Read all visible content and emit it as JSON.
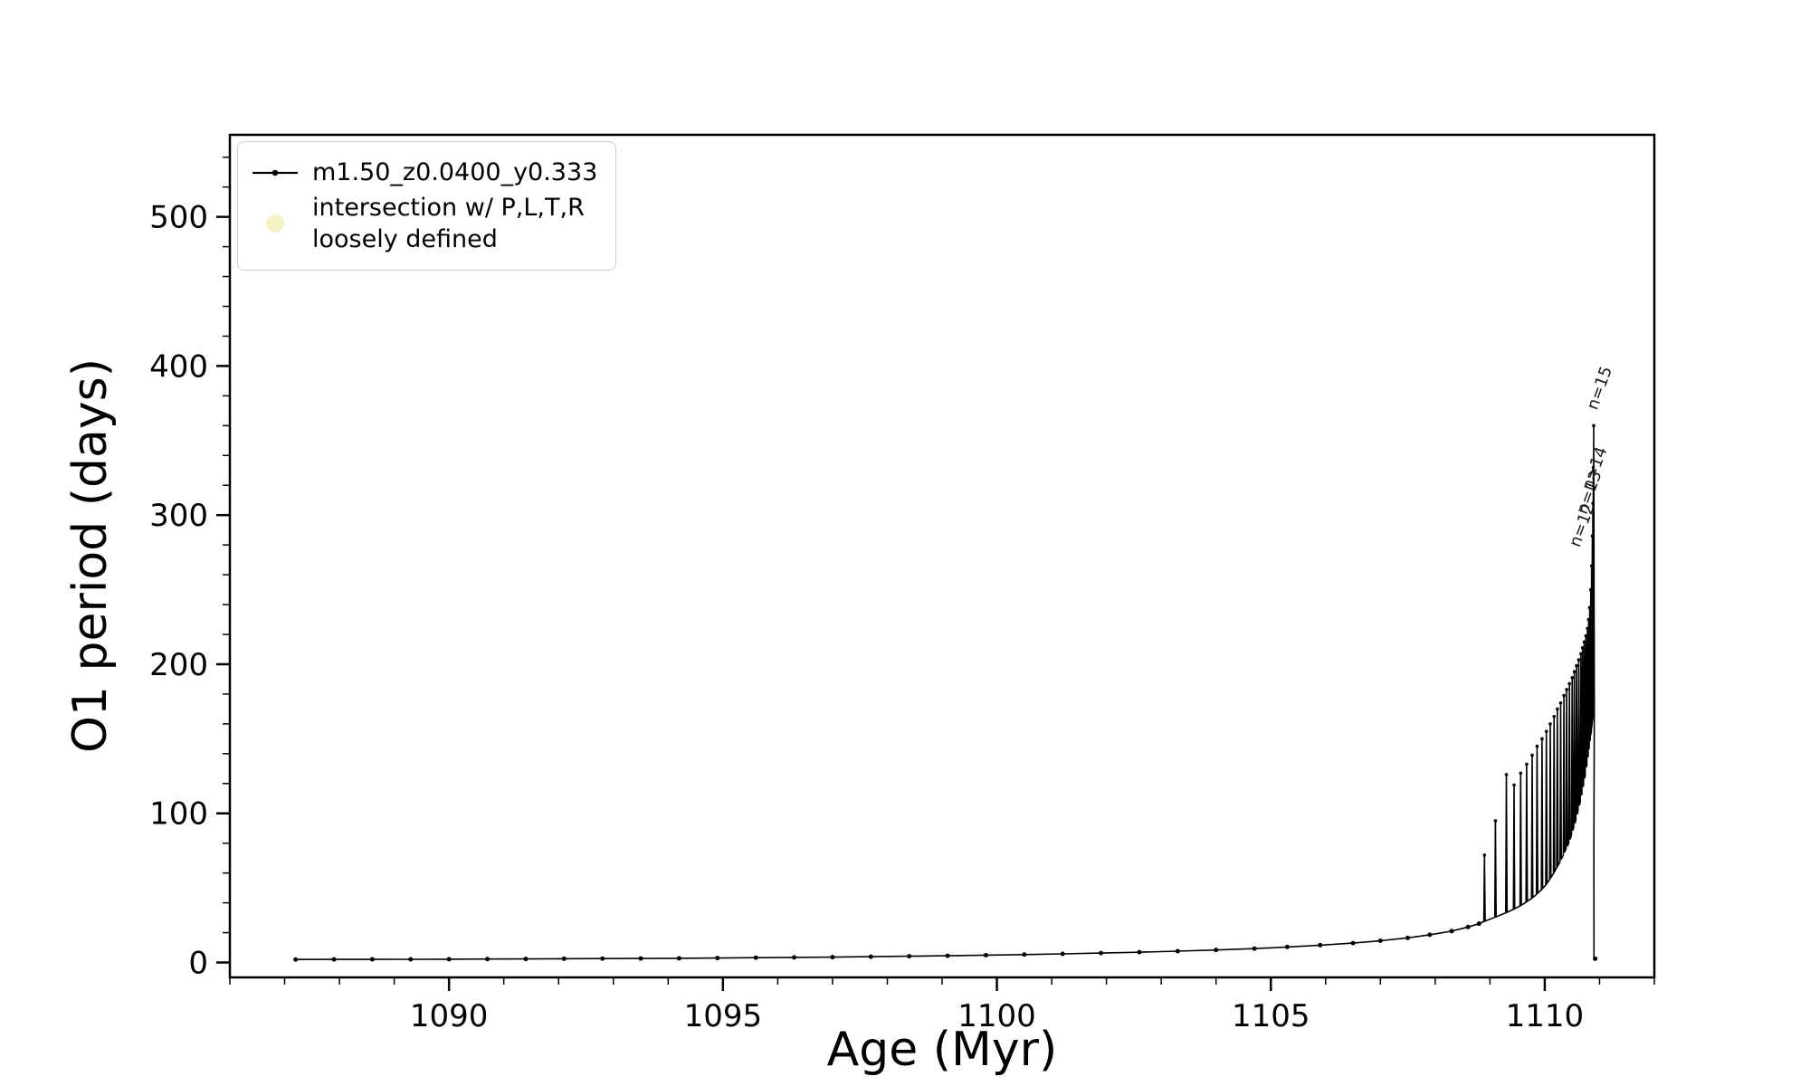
{
  "chart_data": {
    "type": "line",
    "title": "",
    "xlabel": "Age (Myr)",
    "ylabel": "O1 period (days)",
    "xlim": [
      1086.0,
      1112.0
    ],
    "ylim": [
      -10,
      555
    ],
    "xticks": [
      1090,
      1095,
      1100,
      1105,
      1110
    ],
    "yticks": [
      0,
      100,
      200,
      300,
      400,
      500
    ],
    "grid": false,
    "legend_position": "upper-left",
    "legend": [
      {
        "label": "m1.50_z0.0400_y0.333",
        "marker": "line-dot",
        "color": "#000000"
      },
      {
        "label": "intersection w/ P,L,T,R\nloosely defined",
        "marker": "circle",
        "color": "#f0e68c"
      }
    ],
    "series": [
      {
        "name": "m1.50_z0.0400_y0.333",
        "color": "#000000",
        "pulse_halfwidth": 0.012,
        "baseline": [
          [
            1087.2,
            2.0
          ],
          [
            1087.9,
            2.05
          ],
          [
            1088.6,
            2.1
          ],
          [
            1089.3,
            2.15
          ],
          [
            1090.0,
            2.2
          ],
          [
            1090.7,
            2.3
          ],
          [
            1091.4,
            2.4
          ],
          [
            1092.1,
            2.5
          ],
          [
            1092.8,
            2.6
          ],
          [
            1093.5,
            2.7
          ],
          [
            1094.2,
            2.8
          ],
          [
            1094.9,
            3.0
          ],
          [
            1095.6,
            3.2
          ],
          [
            1096.3,
            3.4
          ],
          [
            1097.0,
            3.6
          ],
          [
            1097.7,
            3.9
          ],
          [
            1098.4,
            4.2
          ],
          [
            1099.1,
            4.5
          ],
          [
            1099.8,
            4.9
          ],
          [
            1100.5,
            5.3
          ],
          [
            1101.2,
            5.8
          ],
          [
            1101.9,
            6.3
          ],
          [
            1102.6,
            6.9
          ],
          [
            1103.3,
            7.6
          ],
          [
            1104.0,
            8.4
          ],
          [
            1104.7,
            9.3
          ],
          [
            1105.3,
            10.4
          ],
          [
            1105.9,
            11.6
          ],
          [
            1106.5,
            13.0
          ],
          [
            1107.0,
            14.6
          ],
          [
            1107.5,
            16.5
          ],
          [
            1107.9,
            18.6
          ],
          [
            1108.3,
            21.0
          ],
          [
            1108.6,
            23.8
          ],
          [
            1108.8,
            26.0
          ]
        ],
        "pulses": [
          [
            1108.9,
            72
          ],
          [
            1109.1,
            95
          ],
          [
            1109.3,
            126
          ],
          [
            1109.44,
            119
          ],
          [
            1109.56,
            127
          ],
          [
            1109.67,
            133
          ],
          [
            1109.77,
            139
          ],
          [
            1109.86,
            145
          ],
          [
            1109.95,
            150
          ],
          [
            1110.03,
            155
          ],
          [
            1110.1,
            160
          ],
          [
            1110.17,
            165
          ],
          [
            1110.23,
            170
          ],
          [
            1110.29,
            174
          ],
          [
            1110.35,
            179
          ],
          [
            1110.4,
            183
          ],
          [
            1110.45,
            187
          ],
          [
            1110.5,
            191
          ],
          [
            1110.54,
            195
          ],
          [
            1110.58,
            199
          ],
          [
            1110.62,
            203
          ],
          [
            1110.66,
            207
          ],
          [
            1110.69,
            211
          ],
          [
            1110.72,
            215
          ],
          [
            1110.75,
            219
          ],
          [
            1110.78,
            224
          ],
          [
            1110.8,
            230
          ],
          [
            1110.82,
            238
          ],
          [
            1110.84,
            250
          ],
          [
            1110.855,
            266
          ],
          [
            1110.868,
            286
          ],
          [
            1110.878,
            308
          ],
          [
            1110.886,
            332
          ],
          [
            1110.893,
            360
          ]
        ],
        "troughs": [
          [
            1108.85,
            27
          ],
          [
            1109.0,
            29
          ],
          [
            1109.2,
            32
          ],
          [
            1109.4,
            35
          ],
          [
            1109.6,
            39
          ],
          [
            1109.8,
            44
          ],
          [
            1110.0,
            51
          ],
          [
            1110.15,
            59
          ],
          [
            1110.3,
            69
          ],
          [
            1110.45,
            81
          ],
          [
            1110.55,
            93
          ],
          [
            1110.65,
            108
          ],
          [
            1110.73,
            123
          ],
          [
            1110.79,
            138
          ],
          [
            1110.84,
            152
          ],
          [
            1110.88,
            165
          ],
          [
            1110.893,
            172
          ]
        ],
        "tail": [
          [
            1110.897,
            80
          ],
          [
            1110.899,
            3
          ],
          [
            1110.92,
            2.5
          ]
        ]
      }
    ],
    "annotations": [
      {
        "text": "n=12",
        "x": 1110.63,
        "y": 278,
        "rotation": -70
      },
      {
        "text": "n=13",
        "x": 1110.76,
        "y": 300,
        "rotation": -70
      },
      {
        "text": "n=14",
        "x": 1110.86,
        "y": 316,
        "rotation": -70
      },
      {
        "text": "n=15",
        "x": 1110.95,
        "y": 370,
        "rotation": -70
      }
    ]
  }
}
